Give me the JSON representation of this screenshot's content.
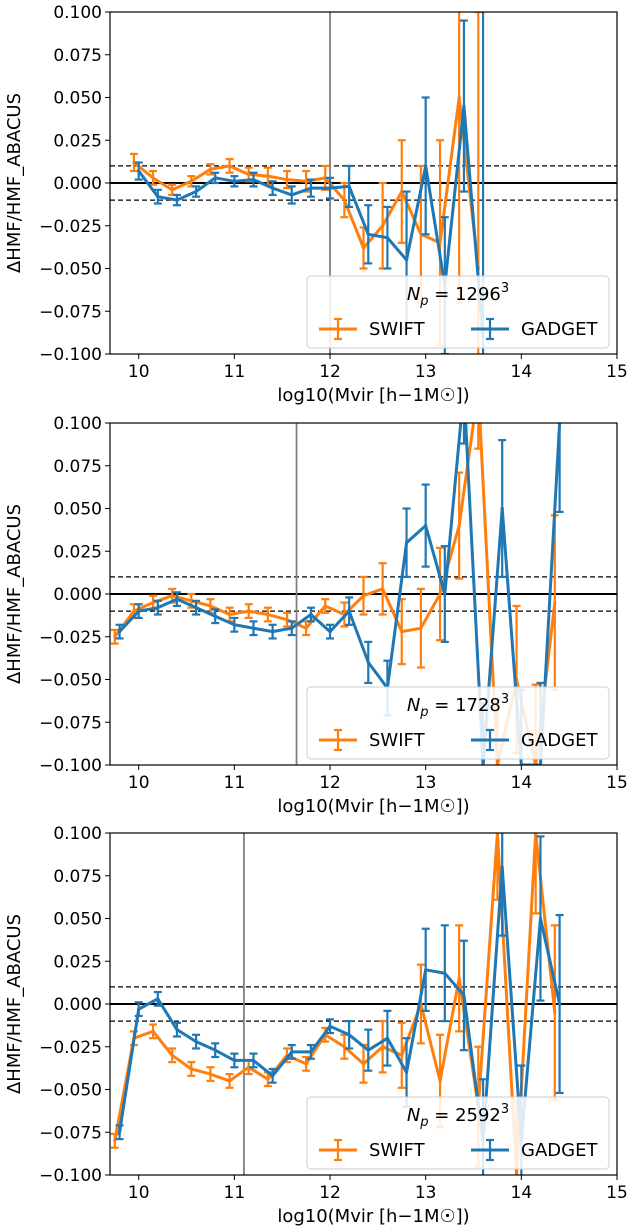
{
  "figure": {
    "xlabel": "log10(Mvir [h−1M☉])",
    "ylabel": "ΔHMF/HMF_ABACUS",
    "colors": {
      "swift": "#ff7f0e",
      "gadget": "#1f77b4",
      "cut_line": "#808080"
    },
    "xlim": [
      9.7,
      15.0
    ],
    "ylim": [
      -0.1,
      0.1
    ],
    "xticks": [
      10,
      11,
      12,
      13,
      14,
      15
    ],
    "yticks": [
      -0.1,
      -0.075,
      -0.05,
      -0.025,
      0.0,
      0.025,
      0.05,
      0.075,
      0.1
    ],
    "ytick_labels": [
      "−0.100",
      "−0.075",
      "−0.050",
      "−0.025",
      "0.000",
      "0.025",
      "0.050",
      "0.075",
      "0.100"
    ],
    "reference_lines": {
      "zero": 0.0,
      "dashed": [
        0.01,
        -0.01
      ]
    }
  },
  "chart_data": [
    {
      "type": "line",
      "legend_title": "N_p = 1296^3",
      "legend_title_parts": {
        "symbol": "N",
        "subscript": "p",
        "equals": " = 1296",
        "superscript": "3"
      },
      "legend_placement": "lower-right",
      "vertical_line_x": 12.0,
      "series": [
        {
          "name": "SWIFT",
          "x": [
            9.95,
            10.15,
            10.35,
            10.55,
            10.75,
            10.95,
            11.15,
            11.35,
            11.55,
            11.75,
            11.95,
            12.15,
            12.35,
            12.55,
            12.75,
            12.95,
            13.15,
            13.35,
            13.55
          ],
          "y": [
            0.012,
            0.003,
            -0.004,
            0.001,
            0.008,
            0.01,
            0.005,
            0.004,
            0.002,
            0.001,
            0.003,
            -0.01,
            -0.038,
            -0.025,
            -0.005,
            -0.03,
            -0.035,
            0.05,
            -0.05
          ],
          "err": [
            0.005,
            0.004,
            0.003,
            0.003,
            0.003,
            0.004,
            0.004,
            0.005,
            0.005,
            0.006,
            0.007,
            0.01,
            0.012,
            0.025,
            0.03,
            0.04,
            0.06,
            0.12,
            0.15
          ]
        },
        {
          "name": "GADGET",
          "x": [
            10.0,
            10.2,
            10.4,
            10.6,
            10.8,
            11.0,
            11.2,
            11.4,
            11.6,
            11.8,
            12.0,
            12.2,
            12.4,
            12.6,
            12.8,
            13.0,
            13.2,
            13.4,
            13.6
          ],
          "y": [
            0.007,
            -0.008,
            -0.01,
            -0.005,
            0.003,
            0.001,
            0.002,
            -0.003,
            -0.007,
            -0.003,
            -0.003,
            -0.002,
            -0.03,
            -0.032,
            -0.045,
            0.01,
            -0.06,
            0.045,
            -0.09
          ],
          "err": [
            0.005,
            0.004,
            0.003,
            0.003,
            0.003,
            0.003,
            0.004,
            0.004,
            0.005,
            0.005,
            0.006,
            0.012,
            0.017,
            0.018,
            0.04,
            0.04,
            0.04,
            0.05,
            0.2
          ]
        }
      ]
    },
    {
      "type": "line",
      "legend_title": "N_p = 1728^3",
      "legend_title_parts": {
        "symbol": "N",
        "subscript": "p",
        "equals": " = 1728",
        "superscript": "3"
      },
      "legend_placement": "lower-right",
      "vertical_line_x": 11.65,
      "series": [
        {
          "name": "SWIFT",
          "x": [
            9.75,
            9.95,
            10.15,
            10.35,
            10.55,
            10.75,
            10.95,
            11.15,
            11.35,
            11.55,
            11.75,
            11.95,
            12.15,
            12.35,
            12.55,
            12.75,
            12.95,
            13.15,
            13.35,
            13.55,
            13.75,
            13.95,
            14.15,
            14.35
          ],
          "y": [
            -0.025,
            -0.01,
            -0.005,
            -0.001,
            -0.004,
            -0.007,
            -0.012,
            -0.01,
            -0.012,
            -0.015,
            -0.02,
            -0.007,
            -0.012,
            -0.001,
            0.003,
            -0.022,
            -0.02,
            0.0,
            0.04,
            0.12,
            -0.1,
            -0.05,
            -0.1,
            -0.005
          ]
        },
        {
          "name": "GADGET",
          "x": [
            9.8,
            10.0,
            10.2,
            10.4,
            10.6,
            10.8,
            11.0,
            11.2,
            11.4,
            11.6,
            11.8,
            12.0,
            12.2,
            12.4,
            12.6,
            12.8,
            13.0,
            13.2,
            13.4,
            13.6,
            13.8,
            14.0,
            14.2,
            14.4
          ],
          "y": [
            -0.022,
            -0.01,
            -0.008,
            -0.003,
            -0.008,
            -0.013,
            -0.018,
            -0.02,
            -0.022,
            -0.02,
            -0.012,
            -0.022,
            -0.01,
            -0.04,
            -0.055,
            0.03,
            0.04,
            0.0,
            0.12,
            -0.1,
            0.05,
            -0.1,
            -0.1,
            0.1
          ]
        }
      ]
    },
    {
      "type": "line",
      "legend_title": "N_p = 2592^3",
      "legend_title_parts": {
        "symbol": "N",
        "subscript": "p",
        "equals": " = 2592",
        "superscript": "3"
      },
      "legend_placement": "lower-right",
      "vertical_line_x": 11.1,
      "series": [
        {
          "name": "SWIFT",
          "x": [
            9.75,
            9.95,
            10.15,
            10.35,
            10.55,
            10.75,
            10.95,
            11.15,
            11.35,
            11.55,
            11.75,
            11.95,
            12.15,
            12.35,
            12.55,
            12.75,
            12.95,
            13.15,
            13.35,
            13.55,
            13.75,
            13.95,
            14.15,
            14.35
          ],
          "y": [
            -0.08,
            -0.02,
            -0.016,
            -0.03,
            -0.038,
            -0.041,
            -0.045,
            -0.037,
            -0.044,
            -0.03,
            -0.035,
            -0.018,
            -0.025,
            -0.035,
            -0.025,
            -0.03,
            0.0,
            -0.045,
            0.015,
            -0.06,
            0.1,
            -0.1,
            0.1,
            -0.005
          ]
        },
        {
          "name": "GADGET",
          "x": [
            9.8,
            10.0,
            10.2,
            10.4,
            10.6,
            10.8,
            11.0,
            11.2,
            11.4,
            11.6,
            11.8,
            12.0,
            12.2,
            12.4,
            12.6,
            12.8,
            13.0,
            13.2,
            13.4,
            13.6,
            13.8,
            14.0,
            14.2,
            14.4
          ],
          "y": [
            -0.075,
            -0.003,
            0.003,
            -0.015,
            -0.022,
            -0.027,
            -0.033,
            -0.033,
            -0.042,
            -0.028,
            -0.028,
            -0.013,
            -0.018,
            -0.027,
            -0.02,
            -0.04,
            0.02,
            0.018,
            0.005,
            -0.08,
            0.08,
            -0.08,
            0.05,
            0.0
          ]
        }
      ]
    }
  ]
}
